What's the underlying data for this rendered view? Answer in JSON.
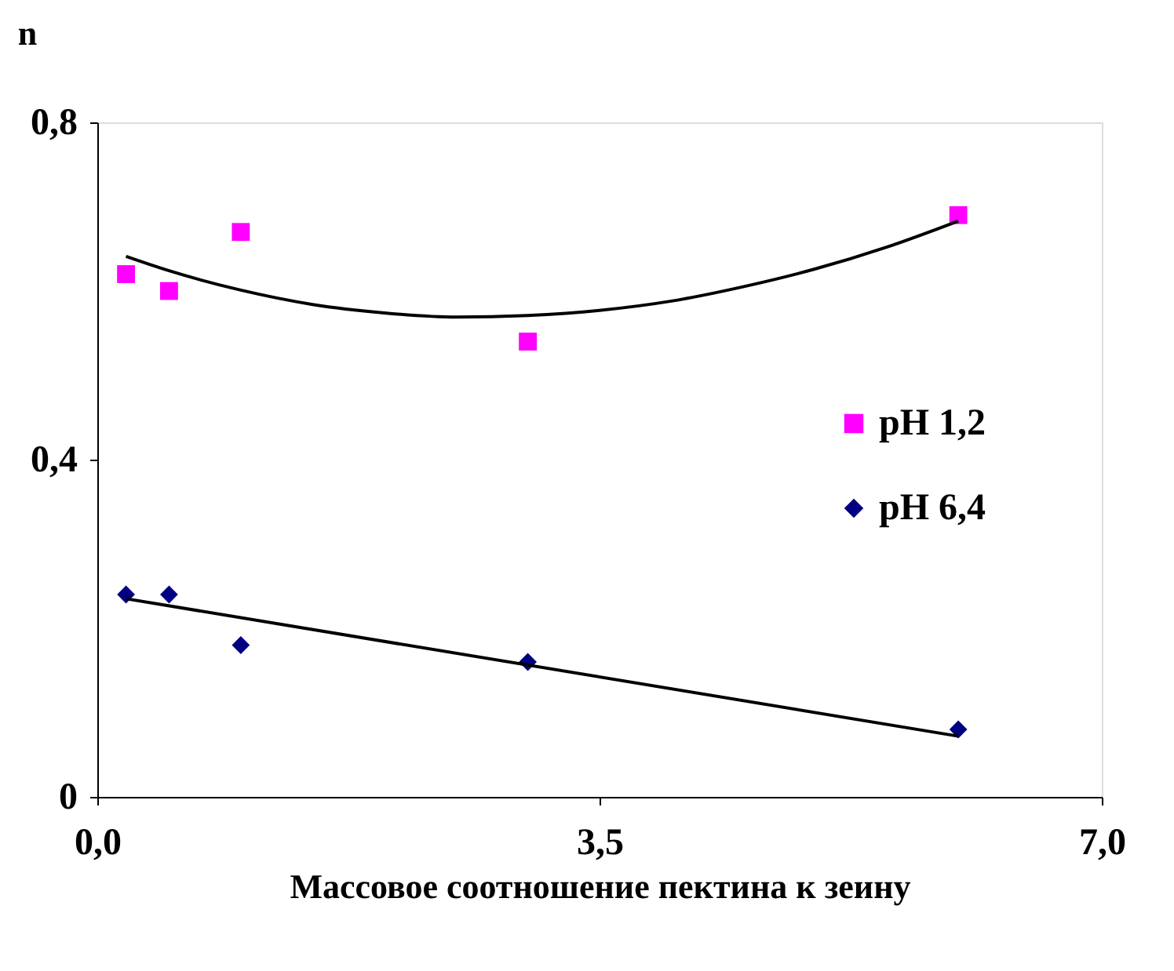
{
  "chart_data": {
    "type": "scatter",
    "xlabel": "Массовое соотношение пектина к зеину",
    "ylabel": "n",
    "xlim": [
      0,
      7
    ],
    "ylim": [
      0,
      0.8
    ],
    "xticks": [
      {
        "value": 0,
        "label": "0,0"
      },
      {
        "value": 3.5,
        "label": "3,5"
      },
      {
        "value": 7,
        "label": "7,0"
      }
    ],
    "yticks": [
      0,
      {
        "value": 0.4,
        "label": "0,4"
      },
      {
        "value": 0.8,
        "label": "0,8"
      }
    ],
    "grid": false,
    "legend": "right",
    "series": [
      {
        "name": "pH 1,2",
        "marker": "square",
        "color": "#ff00ff",
        "x": [
          0.2,
          0.5,
          1.0,
          3.0,
          6.0
        ],
        "values": [
          0.62,
          0.6,
          0.67,
          0.54,
          0.69
        ]
      },
      {
        "name": "pH 6,4",
        "marker": "diamond",
        "color": "#000080",
        "x": [
          0.2,
          0.5,
          1.0,
          3.0,
          6.0
        ],
        "values": [
          0.24,
          0.24,
          0.18,
          0.16,
          0.08
        ]
      },
      {
        "type": "line",
        "color": "#000000",
        "line_style": "solid",
        "x": [
          0.2,
          0.5,
          1,
          1.5,
          2,
          2.5,
          3,
          3.5,
          4,
          4.5,
          5,
          5.5,
          6
        ],
        "values": [
          0.641,
          0.624,
          0.601,
          0.584,
          0.574,
          0.569,
          0.571,
          0.577,
          0.588,
          0.605,
          0.626,
          0.652,
          0.683
        ]
      },
      {
        "type": "line",
        "color": "#000000",
        "line_style": "solid",
        "x": [
          0.2,
          6
        ],
        "values": [
          0.235,
          0.072
        ]
      }
    ]
  }
}
